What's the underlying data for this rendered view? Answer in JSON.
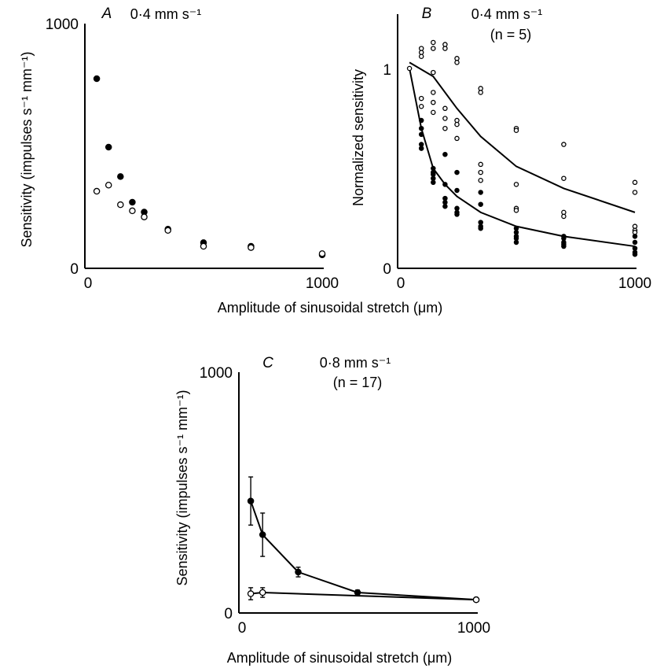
{
  "figure": {
    "xlabel_top": "Amplitude of sinusoidal stretch (μm)",
    "xlabel_bottom": "Amplitude of sinusoidal stretch (μm)"
  },
  "chart_data": [
    {
      "panel": "A",
      "type": "scatter",
      "annotation": "0·4 mm s⁻¹",
      "ylabel": "Sensitivity (impulses s⁻¹ mm⁻¹)",
      "xlim": [
        0,
        1000
      ],
      "ylim": [
        0,
        1000
      ],
      "x_ticks": [
        "0",
        "1000"
      ],
      "y_ticks": [
        "0",
        "1000"
      ],
      "grid": false,
      "series": [
        {
          "marker": "filled-circle",
          "points": [
            [
              50,
              775
            ],
            [
              100,
              495
            ],
            [
              150,
              375
            ],
            [
              200,
              270
            ],
            [
              250,
              230
            ],
            [
              350,
              160
            ],
            [
              500,
              105
            ],
            [
              700,
              90
            ],
            [
              1000,
              55
            ]
          ]
        },
        {
          "marker": "open-circle",
          "points": [
            [
              50,
              315
            ],
            [
              100,
              340
            ],
            [
              150,
              260
            ],
            [
              200,
              235
            ],
            [
              250,
              210
            ],
            [
              350,
              155
            ],
            [
              500,
              90
            ],
            [
              700,
              85
            ],
            [
              1000,
              60
            ]
          ]
        }
      ]
    },
    {
      "panel": "B",
      "type": "scatter",
      "annotation": "0·4 mm s⁻¹",
      "n_label": "(n = 5)",
      "ylabel": "Normalized sensitivity",
      "xlim": [
        0,
        1000
      ],
      "ylim": [
        0,
        1.2
      ],
      "x_ticks": [
        "0",
        "1000"
      ],
      "y_ticks": [
        "0",
        "1"
      ],
      "grid": false,
      "open_points": [
        [
          50,
          1.0
        ],
        [
          100,
          1.1
        ],
        [
          100,
          1.08
        ],
        [
          100,
          1.06
        ],
        [
          100,
          0.85
        ],
        [
          100,
          0.81
        ],
        [
          150,
          1.13
        ],
        [
          150,
          1.1
        ],
        [
          150,
          0.98
        ],
        [
          150,
          0.88
        ],
        [
          150,
          0.83
        ],
        [
          150,
          0.78
        ],
        [
          200,
          1.12
        ],
        [
          200,
          1.1
        ],
        [
          200,
          0.8
        ],
        [
          200,
          0.75
        ],
        [
          200,
          0.7
        ],
        [
          250,
          1.05
        ],
        [
          250,
          1.03
        ],
        [
          250,
          0.74
        ],
        [
          250,
          0.72
        ],
        [
          250,
          0.65
        ],
        [
          350,
          0.9
        ],
        [
          350,
          0.88
        ],
        [
          350,
          0.52
        ],
        [
          350,
          0.48
        ],
        [
          350,
          0.44
        ],
        [
          500,
          0.7
        ],
        [
          500,
          0.69
        ],
        [
          500,
          0.42
        ],
        [
          500,
          0.3
        ],
        [
          500,
          0.29
        ],
        [
          700,
          0.62
        ],
        [
          700,
          0.45
        ],
        [
          700,
          0.28
        ],
        [
          700,
          0.26
        ],
        [
          1000,
          0.43
        ],
        [
          1000,
          0.38
        ],
        [
          1000,
          0.21
        ],
        [
          1000,
          0.19
        ],
        [
          1000,
          0.18
        ]
      ],
      "filled_points": [
        [
          100,
          0.74
        ],
        [
          100,
          0.7
        ],
        [
          100,
          0.67
        ],
        [
          100,
          0.62
        ],
        [
          100,
          0.6
        ],
        [
          150,
          0.5
        ],
        [
          150,
          0.48
        ],
        [
          150,
          0.47
        ],
        [
          150,
          0.45
        ],
        [
          150,
          0.43
        ],
        [
          200,
          0.57
        ],
        [
          200,
          0.42
        ],
        [
          200,
          0.35
        ],
        [
          200,
          0.33
        ],
        [
          200,
          0.31
        ],
        [
          250,
          0.48
        ],
        [
          250,
          0.39
        ],
        [
          250,
          0.3
        ],
        [
          250,
          0.28
        ],
        [
          250,
          0.27
        ],
        [
          350,
          0.38
        ],
        [
          350,
          0.32
        ],
        [
          350,
          0.23
        ],
        [
          350,
          0.21
        ],
        [
          350,
          0.2
        ],
        [
          500,
          0.2
        ],
        [
          500,
          0.18
        ],
        [
          500,
          0.16
        ],
        [
          500,
          0.15
        ],
        [
          500,
          0.13
        ],
        [
          700,
          0.16
        ],
        [
          700,
          0.15
        ],
        [
          700,
          0.13
        ],
        [
          700,
          0.12
        ],
        [
          700,
          0.11
        ],
        [
          1000,
          0.16
        ],
        [
          1000,
          0.13
        ],
        [
          1000,
          0.1
        ],
        [
          1000,
          0.08
        ],
        [
          1000,
          0.07
        ]
      ],
      "lines": [
        {
          "kind": "upper-open-mean",
          "x": [
            50,
            150,
            250,
            350,
            500,
            700,
            1000
          ],
          "y": [
            1.03,
            0.96,
            0.8,
            0.66,
            0.51,
            0.4,
            0.28
          ]
        },
        {
          "kind": "lower-filled-mean",
          "x": [
            50,
            100,
            150,
            200,
            250,
            350,
            500,
            700,
            1000
          ],
          "y": [
            1.0,
            0.7,
            0.5,
            0.42,
            0.36,
            0.28,
            0.21,
            0.16,
            0.11
          ]
        }
      ]
    },
    {
      "panel": "C",
      "type": "line",
      "annotation": "0·8 mm s⁻¹",
      "n_label": "(n = 17)",
      "ylabel": "Sensitivity (impulses s⁻¹ mm⁻¹)",
      "xlim": [
        0,
        1000
      ],
      "ylim": [
        0,
        1000
      ],
      "x_ticks": [
        "0",
        "1000"
      ],
      "y_ticks": [
        "0",
        "1000"
      ],
      "grid": false,
      "series": [
        {
          "marker": "filled-circle",
          "x": [
            50,
            100,
            250,
            500,
            1000
          ],
          "y": [
            465,
            325,
            170,
            85,
            55
          ],
          "error": [
            100,
            90,
            20,
            10,
            5
          ]
        },
        {
          "marker": "open-circle",
          "x": [
            50,
            100,
            1000
          ],
          "y": [
            80,
            85,
            55
          ],
          "error": [
            25,
            20,
            5
          ]
        }
      ]
    }
  ]
}
